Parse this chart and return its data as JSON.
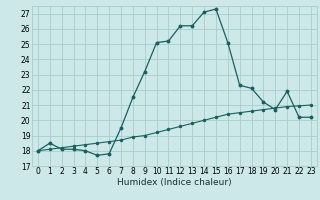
{
  "xlabel": "Humidex (Indice chaleur)",
  "ylabel": "",
  "background_color": "#cce8e8",
  "grid_color": "#aacccc",
  "line_color": "#1a6060",
  "xlim": [
    -0.5,
    23.5
  ],
  "ylim": [
    17,
    27.5
  ],
  "yticks": [
    17,
    18,
    19,
    20,
    21,
    22,
    23,
    24,
    25,
    26,
    27
  ],
  "xticks": [
    0,
    1,
    2,
    3,
    4,
    5,
    6,
    7,
    8,
    9,
    10,
    11,
    12,
    13,
    14,
    15,
    16,
    17,
    18,
    19,
    20,
    21,
    22,
    23
  ],
  "main_x": [
    0,
    1,
    2,
    3,
    4,
    5,
    6,
    7,
    8,
    9,
    10,
    11,
    12,
    13,
    14,
    15,
    16,
    17,
    18,
    19,
    20,
    21,
    22,
    23
  ],
  "main_y": [
    18.0,
    18.5,
    18.1,
    18.1,
    18.0,
    17.7,
    17.8,
    19.5,
    21.5,
    23.2,
    25.1,
    25.2,
    26.2,
    26.2,
    27.1,
    27.3,
    25.1,
    22.3,
    22.1,
    21.2,
    20.7,
    21.9,
    20.2,
    20.2
  ],
  "base_x": [
    0,
    1,
    2,
    3,
    4,
    5,
    6,
    7,
    8,
    9,
    10,
    11,
    12,
    13,
    14,
    15,
    16,
    17,
    18,
    19,
    20,
    21,
    22,
    23
  ],
  "base_y": [
    18.0,
    18.1,
    18.2,
    18.3,
    18.4,
    18.5,
    18.6,
    18.7,
    18.9,
    19.0,
    19.2,
    19.4,
    19.6,
    19.8,
    20.0,
    20.2,
    20.4,
    20.5,
    20.6,
    20.7,
    20.8,
    20.9,
    20.95,
    21.0
  ],
  "xlabel_fontsize": 6.5,
  "tick_fontsize": 5.5
}
